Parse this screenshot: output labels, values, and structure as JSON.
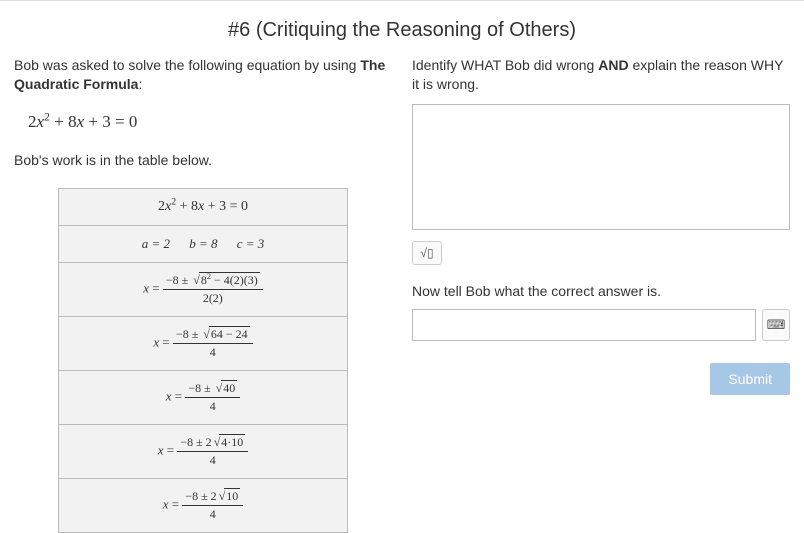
{
  "title": "#6 (Critiquing the Reasoning of Others)",
  "left": {
    "prompt_pre": "Bob was asked to solve the following equation by using ",
    "prompt_bold": "The Quadratic Formula",
    "prompt_post": ":",
    "equation_html": "2x² + 8x + 3 = 0",
    "work_intro": "Bob's work is in the table below.",
    "table": {
      "row1": "2x² + 8x + 3 = 0",
      "a": "a = 2",
      "b": "b = 8",
      "c": "c = 3",
      "step3_num": "−8 ± √(8² − 4(2)(3))",
      "step3_den": "2(2)",
      "step4_num": "−8 ± √(64 − 24)",
      "step4_den": "4",
      "step5_num": "−8 ± √40",
      "step5_den": "4",
      "step6_num": "−8 ± 2√(4·10)",
      "step6_den": "4",
      "step7_num": "−8 ± 2√10",
      "step7_den": "4"
    }
  },
  "right": {
    "prompt_pre": "Identify WHAT Bob did wrong ",
    "prompt_bold": "AND",
    "prompt_post": " explain the reason WHY it is wrong.",
    "followup": "Now tell Bob what the correct answer is.",
    "submit": "Submit"
  }
}
